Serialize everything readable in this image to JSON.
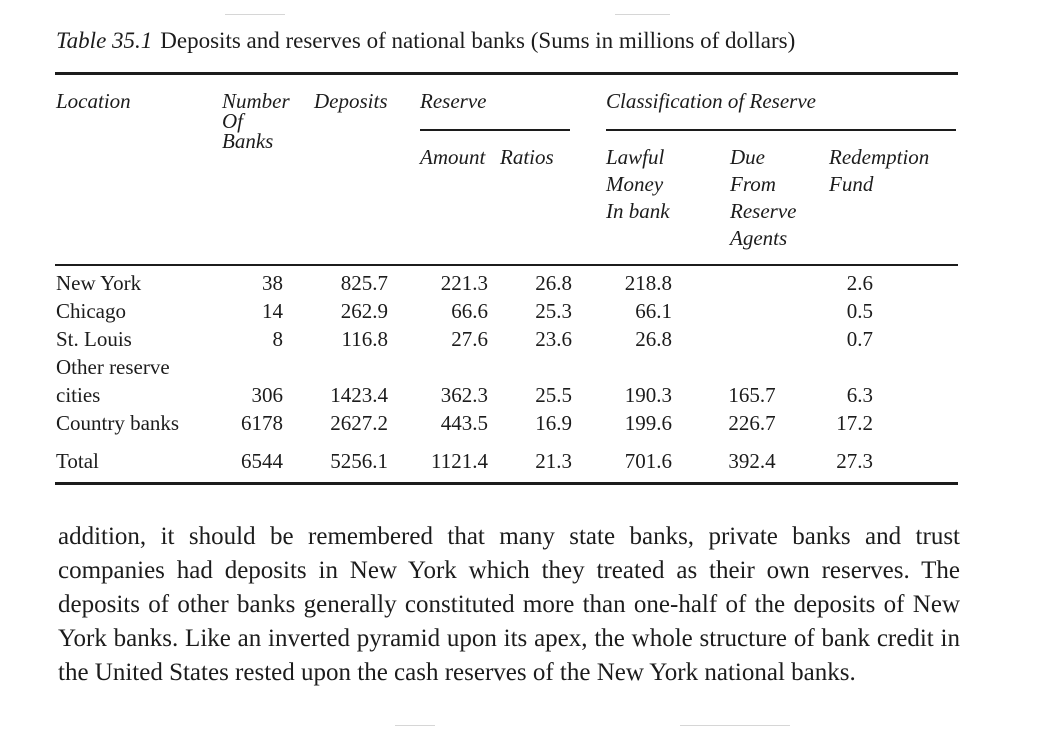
{
  "caption": {
    "number": "Table 35.1",
    "title": "Deposits and reserves of national banks (Sums in millions of dollars)"
  },
  "headers": {
    "location": "Location",
    "number_of_banks": [
      "Number",
      "Of",
      "Banks"
    ],
    "deposits": "Deposits",
    "reserve": "Reserve",
    "reserve_amount": "Amount",
    "reserve_ratios": "Ratios",
    "classification": "Classification of Reserve",
    "lawful_money": [
      "Lawful",
      "Money",
      "In bank"
    ],
    "due_from_agents": [
      "Due",
      "From",
      "Reserve",
      "Agents"
    ],
    "redemption_fund": [
      "Redemption",
      "Fund"
    ]
  },
  "rows": [
    {
      "location": "New York",
      "banks": "38",
      "deposits": "825.7",
      "amount": "221.3",
      "ratio": "26.8",
      "lawful": "218.8",
      "due": "",
      "redemption": "2.6"
    },
    {
      "location": "Chicago",
      "banks": "14",
      "deposits": "262.9",
      "amount": "66.6",
      "ratio": "25.3",
      "lawful": "66.1",
      "due": "",
      "redemption": "0.5"
    },
    {
      "location": "St. Louis",
      "banks": "8",
      "deposits": "116.8",
      "amount": "27.6",
      "ratio": "23.6",
      "lawful": "26.8",
      "due": "",
      "redemption": "0.7"
    },
    {
      "location_line1": "Other reserve",
      "location": "cities",
      "banks": "306",
      "deposits": "1423.4",
      "amount": "362.3",
      "ratio": "25.5",
      "lawful": "190.3",
      "due": "165.7",
      "redemption": "6.3"
    },
    {
      "location": "Country banks",
      "banks": "6178",
      "deposits": "2627.2",
      "amount": "443.5",
      "ratio": "16.9",
      "lawful": "199.6",
      "due": "226.7",
      "redemption": "17.2"
    }
  ],
  "total": {
    "location": "Total",
    "banks": "6544",
    "deposits": "5256.1",
    "amount": "1121.4",
    "ratio": "21.3",
    "lawful": "701.6",
    "due": "392.4",
    "redemption": "27.3"
  },
  "paragraph": "addition, it should be remembered that many state banks, private banks and trust companies had deposits in New York which they treated as their own reserves. The deposits of other banks generally constituted more than one-half of the deposits of New York banks. Like an inverted pyramid upon its apex, the whole structure of bank credit in the United States rested upon the cash reserves of the New York national banks."
}
